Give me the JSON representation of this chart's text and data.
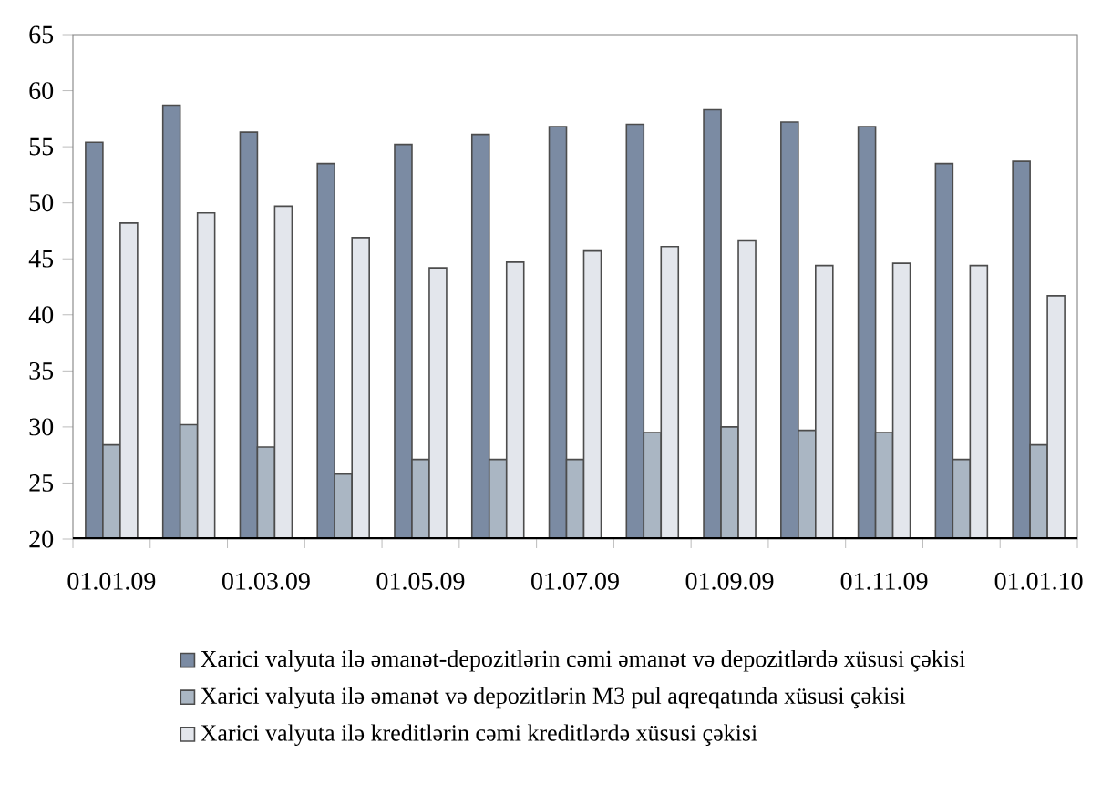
{
  "chart_data": {
    "type": "bar",
    "categories": [
      "01.01.09",
      null,
      "01.03.09",
      null,
      "01.05.09",
      null,
      "01.07.09",
      null,
      "01.09.09",
      null,
      "01.11.09",
      null,
      "01.01.10"
    ],
    "series": [
      {
        "name": "Xarici valyuta ilə əmanət-depozitlərin cəmi əmanət və depozitlərdə xüsusi çəkisi",
        "color": "#7b8ba3",
        "values": [
          55.4,
          58.7,
          56.3,
          53.5,
          55.2,
          56.1,
          56.8,
          57.0,
          58.3,
          57.2,
          56.8,
          53.5,
          53.7
        ]
      },
      {
        "name": "Xarici valyuta ilə əmanət və depozitlərin M3 pul aqreqatında xüsusi çəkisi",
        "color": "#aab6c3",
        "values": [
          28.4,
          30.2,
          28.2,
          25.8,
          27.1,
          27.1,
          27.1,
          29.5,
          30.0,
          29.7,
          29.5,
          27.1,
          28.4
        ]
      },
      {
        "name": "Xarici valyuta ilə kreditlərin cəmi kreditlərdə xüsusi çəkisi",
        "color": "#e3e6ec",
        "values": [
          48.2,
          49.1,
          49.7,
          46.9,
          44.2,
          44.7,
          45.7,
          46.1,
          46.6,
          44.4,
          44.6,
          44.4,
          41.7
        ]
      }
    ],
    "ylim": [
      20,
      65
    ],
    "yticks": [
      20,
      25,
      30,
      35,
      40,
      45,
      50,
      55,
      60,
      65
    ],
    "grid": false,
    "legend": "bottom"
  }
}
